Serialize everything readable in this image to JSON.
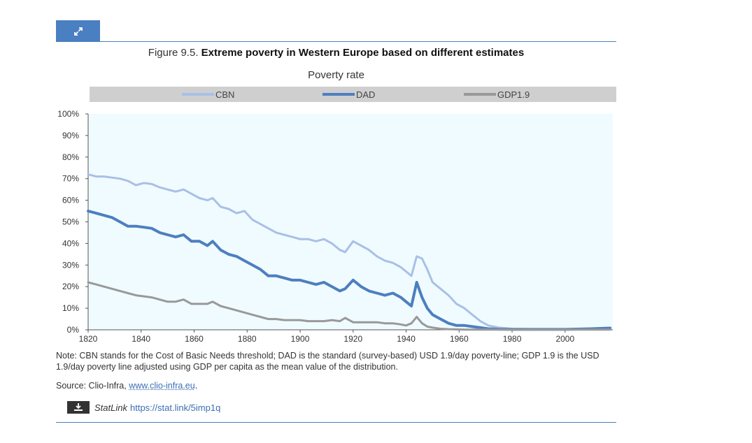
{
  "figure": {
    "label": "Figure 9.5.",
    "title": "Extreme poverty in Western Europe based on different estimates",
    "subtitle": "Poverty rate"
  },
  "icons": {
    "expand": "expand-icon",
    "download": "download-icon"
  },
  "colors": {
    "accent": "#4a7fc1",
    "cbn": "#a9c0e6",
    "dad": "#4d7fbf",
    "gdp": "#999999",
    "plot_bg": "#f0fbff"
  },
  "chart_data": {
    "type": "line",
    "title": "Poverty rate",
    "xlabel": "",
    "ylabel": "",
    "xlim": [
      1820,
      2018
    ],
    "ylim": [
      0,
      100
    ],
    "x_ticks": [
      1820,
      1840,
      1860,
      1880,
      1900,
      1920,
      1940,
      1960,
      1980,
      2000
    ],
    "y_ticks": [
      "0%",
      "10%",
      "20%",
      "30%",
      "40%",
      "50%",
      "60%",
      "70%",
      "80%",
      "90%",
      "100%"
    ],
    "legend": [
      "CBN",
      "DAD",
      "GDP1.9"
    ],
    "series": [
      {
        "name": "CBN",
        "x": [
          1820,
          1823,
          1826,
          1829,
          1832,
          1835,
          1838,
          1841,
          1844,
          1847,
          1850,
          1853,
          1856,
          1859,
          1862,
          1865,
          1867,
          1870,
          1873,
          1876,
          1879,
          1882,
          1885,
          1888,
          1891,
          1894,
          1897,
          1900,
          1903,
          1906,
          1909,
          1912,
          1915,
          1917,
          1920,
          1923,
          1926,
          1929,
          1932,
          1935,
          1938,
          1940,
          1942,
          1944,
          1946,
          1948,
          1950,
          1953,
          1956,
          1959,
          1962,
          1965,
          1968,
          1971,
          1975,
          1980,
          1990,
          2000,
          2010,
          2017
        ],
        "values": [
          72,
          71,
          71,
          70.5,
          70,
          69,
          67,
          68,
          67.5,
          66,
          65,
          64,
          65,
          63,
          61,
          60,
          61,
          57,
          56,
          54,
          55,
          51,
          49,
          47,
          45,
          44,
          43,
          42,
          42,
          41,
          42,
          40,
          37,
          36,
          41,
          39,
          37,
          34,
          32,
          31,
          29,
          27,
          25,
          34,
          33,
          28,
          22,
          19,
          16,
          12,
          10,
          7,
          4,
          2,
          1,
          0.5,
          0.3,
          0.3,
          0.5,
          0.8
        ]
      },
      {
        "name": "DAD",
        "x": [
          1820,
          1823,
          1826,
          1829,
          1832,
          1835,
          1838,
          1841,
          1844,
          1847,
          1850,
          1853,
          1856,
          1859,
          1862,
          1865,
          1867,
          1870,
          1873,
          1876,
          1879,
          1882,
          1885,
          1888,
          1891,
          1894,
          1897,
          1900,
          1903,
          1906,
          1909,
          1912,
          1915,
          1917,
          1920,
          1923,
          1926,
          1929,
          1932,
          1935,
          1938,
          1940,
          1942,
          1944,
          1946,
          1948,
          1950,
          1953,
          1956,
          1959,
          1962,
          1965,
          1968,
          1971,
          1975,
          1980,
          1990,
          2000,
          2010,
          2017
        ],
        "values": [
          55,
          54,
          53,
          52,
          50,
          48,
          48,
          47.5,
          47,
          45,
          44,
          43,
          44,
          41,
          41,
          39,
          41,
          37,
          35,
          34,
          32,
          30,
          28,
          25,
          25,
          24,
          23,
          23,
          22,
          21,
          22,
          20,
          18,
          19,
          23,
          20,
          18,
          17,
          16,
          17,
          15,
          13,
          11,
          22,
          15,
          10,
          7,
          5,
          3,
          2,
          2,
          1.5,
          1,
          0.5,
          0.3,
          0.2,
          0.2,
          0.2,
          0.5,
          0.8
        ]
      },
      {
        "name": "GDP1.9",
        "x": [
          1820,
          1823,
          1826,
          1829,
          1832,
          1835,
          1838,
          1841,
          1844,
          1847,
          1850,
          1853,
          1856,
          1859,
          1862,
          1865,
          1867,
          1870,
          1873,
          1876,
          1879,
          1882,
          1885,
          1888,
          1891,
          1894,
          1897,
          1900,
          1903,
          1906,
          1909,
          1912,
          1915,
          1917,
          1920,
          1923,
          1926,
          1929,
          1932,
          1935,
          1938,
          1940,
          1942,
          1944,
          1946,
          1948,
          1950,
          1953,
          1956,
          1959,
          1962,
          1965,
          1968,
          1971,
          1975,
          1980,
          1990,
          2000,
          2010,
          2017
        ],
        "values": [
          22,
          21,
          20,
          19,
          18,
          17,
          16,
          15.5,
          15,
          14,
          13,
          13,
          14,
          12,
          12,
          12,
          13,
          11,
          10,
          9,
          8,
          7,
          6,
          5,
          5,
          4.5,
          4.5,
          4.5,
          4,
          4,
          4,
          4.5,
          4,
          5.5,
          3.5,
          3.5,
          3.5,
          3.5,
          3,
          3,
          2.5,
          2,
          3,
          6,
          3,
          1.5,
          1,
          0.5,
          0.3,
          0.2,
          0.1,
          0.1,
          0.1,
          0.1,
          0.1,
          0.1,
          0.1,
          0.1,
          0.1,
          0.1
        ]
      }
    ]
  },
  "note": "Note: CBN stands for the Cost of Basic Needs threshold; DAD is the standard (survey-based) USD 1.9/day poverty-line; GDP 1.9 is the USD 1.9/day poverty line adjusted using GDP per capita as the mean value of the distribution.",
  "source": {
    "prefix": "Source: Clio-Infra, ",
    "link_text": "www.clio-infra.eu",
    "suffix": "."
  },
  "statlink": {
    "label": "StatLink",
    "url": "https://stat.link/5imp1q"
  }
}
